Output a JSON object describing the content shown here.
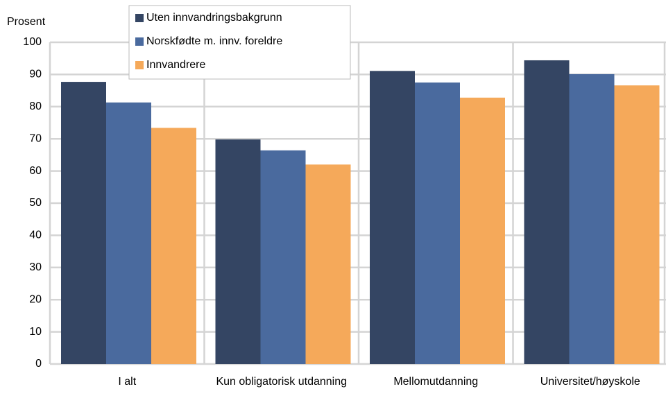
{
  "chart_data": {
    "type": "bar",
    "y_axis_label": "Prosent",
    "categories": [
      "I alt",
      "Kun obligatorisk utdanning",
      "Mellomutdanning",
      "Universitet/høyskole"
    ],
    "series": [
      {
        "name": "Uten innvandringsbakgrunn",
        "color": "#344563",
        "values": [
          87.7,
          69.8,
          91.1,
          94.4
        ]
      },
      {
        "name": "Norskfødte m. innv. foreldre",
        "color": "#4a6a9e",
        "values": [
          81.3,
          66.4,
          87.5,
          90.1
        ]
      },
      {
        "name": "Innvandrere",
        "color": "#f5a95a",
        "values": [
          73.4,
          62.0,
          82.8,
          86.6
        ]
      }
    ],
    "ylim": [
      0,
      100
    ],
    "yticks": [
      0,
      10,
      20,
      30,
      40,
      50,
      60,
      70,
      80,
      90,
      100
    ],
    "grid": true,
    "legend": "top"
  }
}
